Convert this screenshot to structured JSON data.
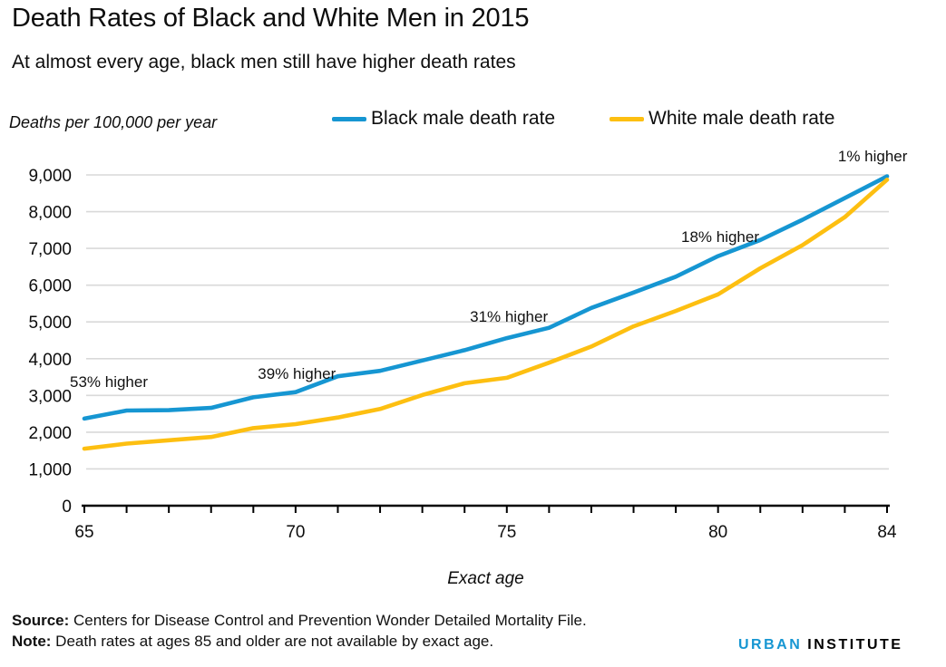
{
  "header": {
    "title": "Death Rates of Black and White Men in 2015",
    "subtitle": "At almost every age, black men still have higher death rates"
  },
  "unit_label": "Deaths per 100,000 per year",
  "legend": {
    "items": [
      {
        "label": "Black male death rate",
        "color": "#1696d2"
      },
      {
        "label": "White male death rate",
        "color": "#fdbf11"
      }
    ]
  },
  "chart_data": {
    "type": "line",
    "title": "Death Rates of Black and White Men in 2015",
    "xlabel": "Exact age",
    "ylabel": "Deaths per 100,000 per year",
    "x": [
      65,
      66,
      67,
      68,
      69,
      70,
      71,
      72,
      73,
      74,
      75,
      76,
      77,
      78,
      79,
      80,
      81,
      82,
      83,
      84
    ],
    "series": [
      {
        "name": "Black male death rate",
        "color": "#1696d2",
        "values": [
          2370,
          2590,
          2600,
          2660,
          2950,
          3090,
          3520,
          3670,
          3950,
          4230,
          4560,
          4840,
          5380,
          5800,
          6230,
          6790,
          7230,
          7780,
          8370,
          8960
        ]
      },
      {
        "name": "White male death rate",
        "color": "#fdbf11",
        "values": [
          1550,
          1690,
          1780,
          1870,
          2110,
          2220,
          2400,
          2630,
          3010,
          3330,
          3480,
          3890,
          4330,
          4880,
          5300,
          5750,
          6460,
          7090,
          7850,
          8870
        ]
      }
    ],
    "annotations": [
      {
        "text": "53% higher",
        "age": 65.58,
        "value": 3230
      },
      {
        "text": "39% higher",
        "age": 70.03,
        "value": 3450
      },
      {
        "text": "31% higher",
        "age": 75.05,
        "value": 5000
      },
      {
        "text": "18% higher",
        "age": 80.05,
        "value": 7180
      },
      {
        "text": "1% higher",
        "age": 83.66,
        "value": 9370
      }
    ],
    "xlim": [
      65,
      84
    ],
    "ylim": [
      0,
      9000
    ],
    "y_ticks": [
      0,
      1000,
      2000,
      3000,
      4000,
      5000,
      6000,
      7000,
      8000,
      9000
    ],
    "x_labeled_ticks": [
      65,
      70,
      75,
      80,
      84
    ],
    "grid": true,
    "legend_position": "top",
    "grid_color": "#d9d9d9",
    "axis_color": "#000000"
  },
  "footer": {
    "source_label": "Source:",
    "source_text": " Centers for Disease Control and Prevention Wonder Detailed Mortality File.",
    "note_label": "Note:",
    "note_text": " Death rates at ages 85 and older are not available by exact age.",
    "logo": {
      "part1": "URBAN",
      "part2": "INSTITUTE",
      "color1": "#1696d2",
      "color2": "#000000"
    }
  }
}
